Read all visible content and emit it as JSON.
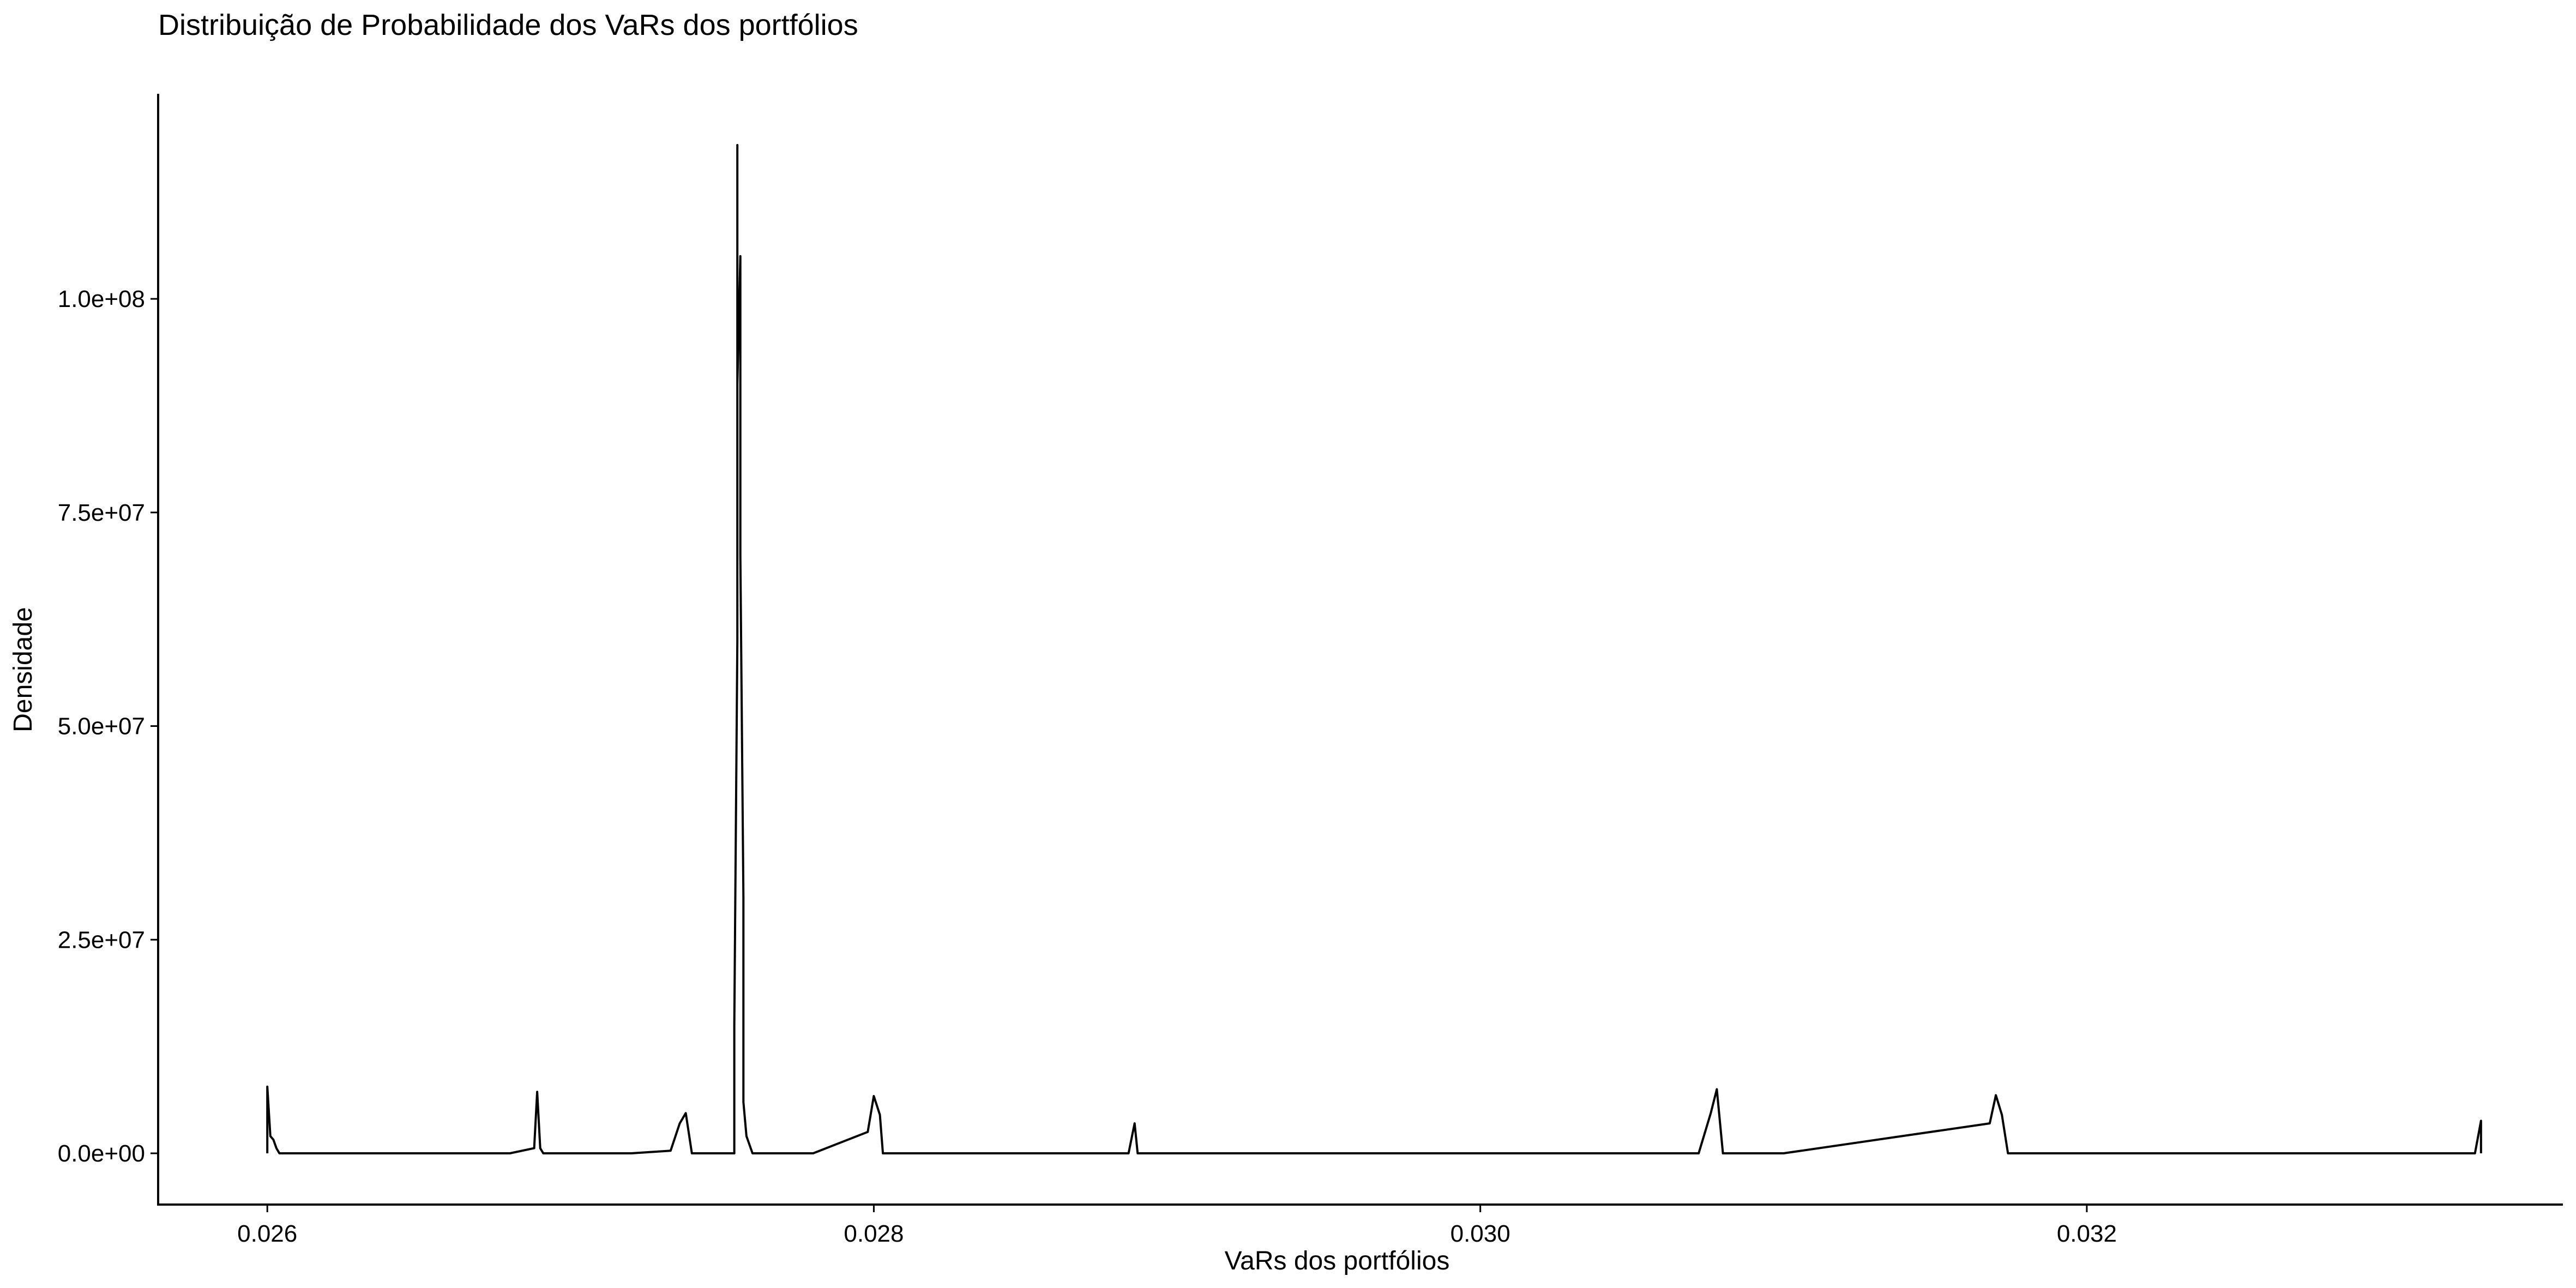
{
  "chart_data": {
    "type": "line",
    "title": "Distribuição de Probabilidade dos VaRs dos portfólios",
    "xlabel": "VaRs dos portfólios",
    "ylabel": "Densidade",
    "xlim": [
      0.02564,
      0.03357
    ],
    "ylim": [
      -6000000,
      124000000
    ],
    "x_ticks": [
      0.026,
      0.028,
      0.03,
      0.032
    ],
    "x_tick_labels": [
      "0.026",
      "0.028",
      "0.030",
      "0.032"
    ],
    "y_ticks": [
      0,
      25000000,
      50000000,
      75000000,
      100000000
    ],
    "y_tick_labels": [
      "0.0e+00",
      "2.5e+07",
      "5.0e+07",
      "7.5e+07",
      "1.0e+08"
    ],
    "grid": false,
    "legend": "none",
    "line_color": "#000000",
    "series": [
      {
        "x": [
          0.026,
          0.026,
          0.02601,
          0.02602,
          0.02603,
          0.02604,
          0.02605,
          0.0268,
          0.02688,
          0.02689,
          0.0269,
          0.02691,
          0.0272,
          0.02733,
          0.02736,
          0.02738,
          0.0274,
          0.02754,
          0.02754,
          0.02755,
          0.02755,
          0.02755,
          0.02756,
          0.02756,
          0.02757,
          0.02757,
          0.02757,
          0.02758,
          0.0276,
          0.0278,
          0.02798,
          0.028,
          0.02802,
          0.02803,
          0.0284,
          0.02884,
          0.02886,
          0.02887,
          0.0292,
          0.03072,
          0.03076,
          0.03078,
          0.0308,
          0.031,
          0.03168,
          0.0317,
          0.03172,
          0.03174,
          0.032,
          0.03328,
          0.0333,
          0.0333
        ],
        "y": [
          0,
          7800000,
          2000000,
          1600000,
          600000,
          0,
          0,
          0,
          600000,
          7200000,
          600000,
          0,
          0,
          300000,
          3500000,
          4700000,
          0,
          0,
          15000000,
          60000000,
          118000000,
          90000000,
          105000000,
          70000000,
          30000000,
          8000000,
          6000000,
          2000000,
          0,
          0,
          2500000,
          6700000,
          4500000,
          0,
          0,
          0,
          3500000,
          0,
          0,
          0,
          4700000,
          7500000,
          0,
          0,
          3500000,
          6800000,
          4500000,
          0,
          0,
          0,
          3800000,
          0
        ]
      }
    ]
  }
}
